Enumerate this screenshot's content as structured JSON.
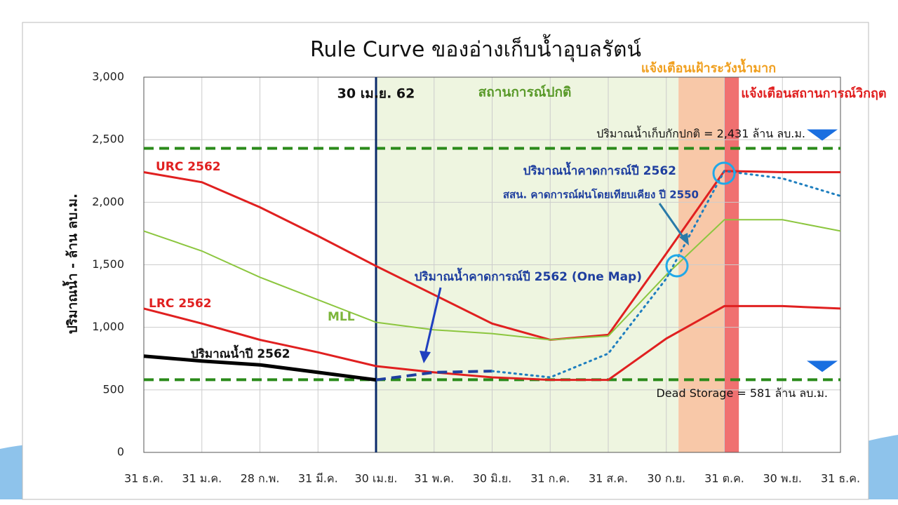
{
  "chart_data": {
    "type": "line",
    "title": "Rule Curve ของอ่างเก็บน้ำอุบลรัตน์",
    "y_label": "ปริมาณน้ำ - ล้าน ลบ.ม.",
    "categories": [
      "31 ธ.ค.",
      "31 ม.ค.",
      "28 ก.พ.",
      "31 มี.ค.",
      "30 เม.ย.",
      "31 พ.ค.",
      "30 มิ.ย.",
      "31 ก.ค.",
      "31 ส.ค.",
      "30 ก.ย.",
      "31 ต.ค.",
      "30 พ.ย.",
      "31 ธ.ค."
    ],
    "ylim": [
      0,
      3000
    ],
    "yticks": [
      0,
      500,
      {
        "value": 1000,
        "label": "1,000"
      },
      {
        "value": 1500,
        "label": "1,500"
      },
      {
        "value": 2000,
        "label": "2,000"
      },
      {
        "value": 2500,
        "label": "2,500"
      },
      {
        "value": 3000,
        "label": "3,000"
      }
    ],
    "grid": true,
    "series": [
      {
        "name": "URC 2562",
        "color": "#e02020",
        "dash": "solid",
        "values": [
          2240,
          2160,
          1960,
          1730,
          1490,
          1260,
          1030,
          900,
          940,
          1590,
          2250,
          2240,
          2240
        ]
      },
      {
        "name": "MLL",
        "color": "#8cc63f",
        "dash": "solid",
        "values": [
          1770,
          1610,
          1400,
          1220,
          1040,
          980,
          950,
          900,
          930,
          1420,
          1860,
          1860,
          1770
        ]
      },
      {
        "name": "LRC 2562",
        "color": "#e02020",
        "dash": "solid",
        "values": [
          1150,
          1030,
          900,
          800,
          690,
          640,
          600,
          580,
          580,
          910,
          1170,
          1170,
          1150
        ]
      },
      {
        "name": "ปริมาณน้ำปี 2562",
        "color": "#000000",
        "dash": "solid",
        "values": [
          770,
          730,
          700,
          640,
          580,
          null,
          null,
          null,
          null,
          null,
          null,
          null,
          null
        ]
      },
      {
        "name": "ปริมาณน้ำคาดการณ์ปี 2562 (One Map)",
        "color": "#1f3f9f",
        "dash": "dashed",
        "values": [
          null,
          null,
          null,
          null,
          580,
          640,
          650,
          null,
          null,
          null,
          null,
          null,
          null
        ]
      },
      {
        "name": "ปริมาณน้ำคาดการณ์ปี 2562",
        "color": "#1f7fbf",
        "dash": "dotted",
        "values": [
          null,
          null,
          null,
          null,
          null,
          null,
          650,
          600,
          790,
          1390,
          2250,
          2190,
          2050
        ]
      }
    ],
    "reference_lines": [
      {
        "value": 2431,
        "label": "ปริมาณน้ำเก็บกักปกติ = 2,431 ล้าน ลบ.ม."
      },
      {
        "value": 581,
        "label": "Dead Storage = 581 ล้าน ลบ.ม."
      }
    ],
    "annotations": [
      "30 เม.ย. 62",
      "สถานการณ์ปกติ",
      "แจ้งเตือนเฝ้าระวังน้ำมาก",
      "แจ้งเตือนสถานการณ์วิกฤต",
      "สสน. คาดการณ์ฝนโดยเทียบเคียง ปี 2550"
    ]
  }
}
